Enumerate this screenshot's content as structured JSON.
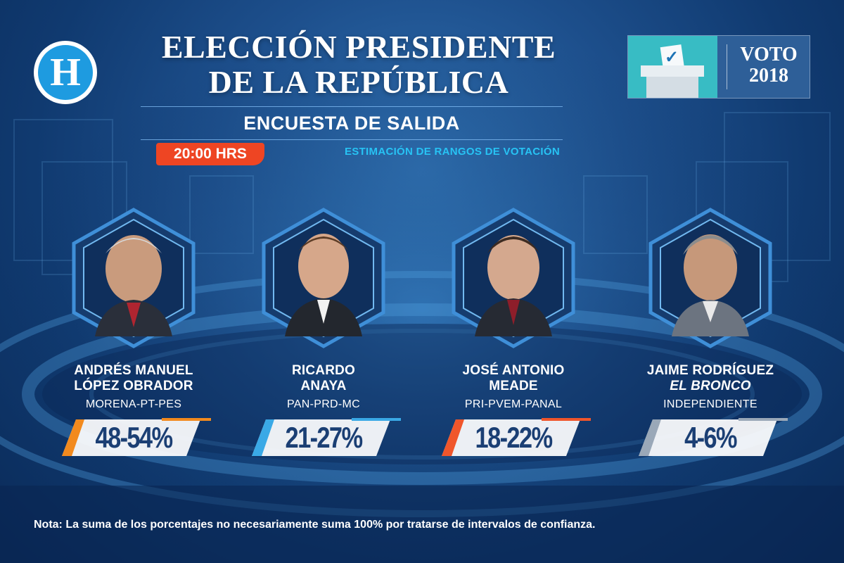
{
  "header": {
    "logo_letter": "H",
    "title_line1": "ELECCIÓN PRESIDENTE",
    "title_line2": "DE LA REPÚBLICA",
    "subtitle": "ENCUESTA DE SALIDA",
    "time": "20:00 HRS",
    "estimation_label": "ESTIMACIÓN DE RANGOS DE VOTACIÓN"
  },
  "voto_badge": {
    "line1": "VOTO",
    "line2": "2018",
    "icon": "ballot-box-icon"
  },
  "candidates": [
    {
      "name_line1": "ANDRÉS MANUEL",
      "name_line2": "LÓPEZ OBRADOR",
      "party": "MORENA-PT-PES",
      "range": "48-54%",
      "accent": "#f28a1e"
    },
    {
      "name_line1": "RICARDO",
      "name_line2": "ANAYA",
      "party": "PAN-PRD-MC",
      "range": "21-27%",
      "accent": "#3aa9e6"
    },
    {
      "name_line1": "JOSÉ ANTONIO",
      "name_line2": "MEADE",
      "party": "PRI-PVEM-PANAL",
      "range": "18-22%",
      "accent": "#f0562b"
    },
    {
      "name_line1": "JAIME RODRÍGUEZ",
      "name_line2": "EL BRONCO",
      "party": "INDEPENDIENTE",
      "range": "4-6%",
      "accent": "#9aa8b8"
    }
  ],
  "colors": {
    "background": "#1d4f8c",
    "time_badge": "#ee4523",
    "estimation_text": "#27c3f4"
  },
  "note": "Nota: La suma de los porcentajes no necesariamente suma 100% por tratarse de intervalos de confianza."
}
